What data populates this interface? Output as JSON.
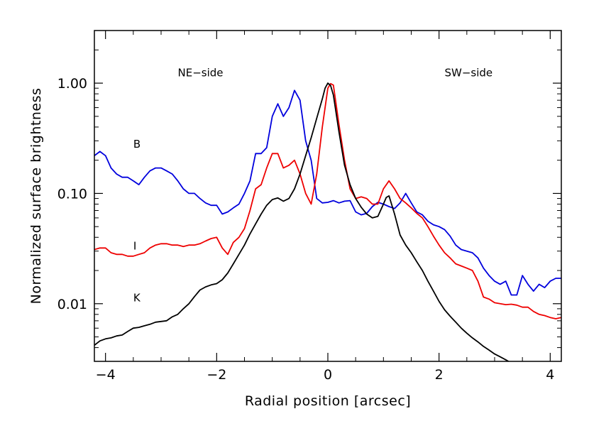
{
  "chart_data": {
    "type": "line",
    "title": "",
    "xlabel": "Radial position [arcsec]",
    "ylabel": "Normalized surface brightness",
    "xlim": [
      -4.2,
      4.2
    ],
    "ylim": [
      0.003,
      3.0
    ],
    "yscale": "log",
    "grid": false,
    "xticks": [
      -4,
      -2,
      0,
      2,
      4
    ],
    "xtick_labels": [
      "−4",
      "−2",
      "0",
      "2",
      "4"
    ],
    "yticks": [
      0.01,
      0.1,
      1.0
    ],
    "ytick_labels": [
      "0.01",
      "0.10",
      "1.00"
    ],
    "annotations": [
      {
        "text": "NE−side",
        "x": -2.7,
        "y": 1.15
      },
      {
        "text": "SW−side",
        "x": 2.1,
        "y": 1.15
      },
      {
        "text": "B",
        "x": -3.5,
        "y": 0.26
      },
      {
        "text": "I",
        "x": -3.5,
        "y": 0.031
      },
      {
        "text": "K",
        "x": -3.5,
        "y": 0.0105
      }
    ],
    "series": [
      {
        "name": "B",
        "color": "#0000dd",
        "x": [
          -4.2,
          -4.1,
          -4.0,
          -3.9,
          -3.8,
          -3.7,
          -3.6,
          -3.5,
          -3.4,
          -3.3,
          -3.2,
          -3.1,
          -3.0,
          -2.9,
          -2.8,
          -2.7,
          -2.6,
          -2.5,
          -2.4,
          -2.3,
          -2.2,
          -2.1,
          -2.0,
          -1.9,
          -1.8,
          -1.7,
          -1.6,
          -1.5,
          -1.4,
          -1.3,
          -1.2,
          -1.1,
          -1.0,
          -0.9,
          -0.8,
          -0.7,
          -0.6,
          -0.5,
          -0.4,
          -0.3,
          -0.2,
          -0.1,
          0.0,
          0.1,
          0.2,
          0.3,
          0.4,
          0.5,
          0.6,
          0.7,
          0.8,
          0.9,
          1.0,
          1.1,
          1.2,
          1.3,
          1.4,
          1.5,
          1.6,
          1.7,
          1.8,
          1.9,
          2.0,
          2.1,
          2.2,
          2.3,
          2.4,
          2.5,
          2.6,
          2.7,
          2.8,
          2.9,
          3.0,
          3.1,
          3.2,
          3.3,
          3.4,
          3.5,
          3.6,
          3.7,
          3.8,
          3.9,
          4.0,
          4.1,
          4.2
        ],
        "y": [
          0.22,
          0.24,
          0.22,
          0.17,
          0.15,
          0.14,
          0.14,
          0.13,
          0.12,
          0.14,
          0.16,
          0.17,
          0.17,
          0.16,
          0.15,
          0.13,
          0.11,
          0.1,
          0.1,
          0.09,
          0.082,
          0.078,
          0.078,
          0.065,
          0.068,
          0.074,
          0.08,
          0.1,
          0.13,
          0.23,
          0.23,
          0.26,
          0.5,
          0.65,
          0.5,
          0.6,
          0.86,
          0.7,
          0.3,
          0.2,
          0.09,
          0.082,
          0.083,
          0.086,
          0.082,
          0.085,
          0.086,
          0.068,
          0.064,
          0.066,
          0.076,
          0.083,
          0.08,
          0.076,
          0.073,
          0.082,
          0.1,
          0.082,
          0.068,
          0.064,
          0.056,
          0.052,
          0.05,
          0.047,
          0.041,
          0.034,
          0.031,
          0.03,
          0.029,
          0.026,
          0.021,
          0.018,
          0.016,
          0.015,
          0.016,
          0.012,
          0.012,
          0.018,
          0.015,
          0.013,
          0.015,
          0.014,
          0.016,
          0.017,
          0.017
        ]
      },
      {
        "name": "I",
        "color": "#ee0000",
        "x": [
          -4.2,
          -4.1,
          -4.0,
          -3.9,
          -3.8,
          -3.7,
          -3.6,
          -3.5,
          -3.4,
          -3.3,
          -3.2,
          -3.1,
          -3.0,
          -2.9,
          -2.8,
          -2.7,
          -2.6,
          -2.5,
          -2.4,
          -2.3,
          -2.2,
          -2.1,
          -2.0,
          -1.9,
          -1.8,
          -1.7,
          -1.6,
          -1.5,
          -1.4,
          -1.3,
          -1.2,
          -1.1,
          -1.0,
          -0.9,
          -0.8,
          -0.7,
          -0.6,
          -0.5,
          -0.4,
          -0.3,
          -0.2,
          -0.1,
          0.0,
          0.05,
          0.1,
          0.2,
          0.3,
          0.4,
          0.5,
          0.6,
          0.7,
          0.8,
          0.9,
          1.0,
          1.1,
          1.2,
          1.3,
          1.4,
          1.5,
          1.6,
          1.7,
          1.8,
          1.9,
          2.0,
          2.1,
          2.2,
          2.3,
          2.4,
          2.5,
          2.6,
          2.7,
          2.8,
          2.9,
          3.0,
          3.1,
          3.2,
          3.3,
          3.4,
          3.5,
          3.6,
          3.7,
          3.8,
          3.9,
          4.0,
          4.1,
          4.2
        ],
        "y": [
          0.031,
          0.032,
          0.032,
          0.029,
          0.028,
          0.028,
          0.027,
          0.027,
          0.028,
          0.029,
          0.032,
          0.034,
          0.035,
          0.035,
          0.034,
          0.034,
          0.033,
          0.034,
          0.034,
          0.035,
          0.037,
          0.039,
          0.04,
          0.032,
          0.028,
          0.036,
          0.04,
          0.048,
          0.07,
          0.11,
          0.12,
          0.17,
          0.23,
          0.23,
          0.17,
          0.18,
          0.2,
          0.15,
          0.1,
          0.08,
          0.15,
          0.4,
          0.9,
          0.99,
          0.96,
          0.42,
          0.2,
          0.11,
          0.09,
          0.093,
          0.09,
          0.08,
          0.08,
          0.11,
          0.13,
          0.11,
          0.09,
          0.082,
          0.074,
          0.066,
          0.06,
          0.05,
          0.041,
          0.034,
          0.029,
          0.026,
          0.023,
          0.022,
          0.021,
          0.02,
          0.016,
          0.0115,
          0.011,
          0.0102,
          0.01,
          0.0098,
          0.0099,
          0.0097,
          0.0093,
          0.0093,
          0.0085,
          0.008,
          0.0078,
          0.0075,
          0.0073,
          0.0075
        ]
      },
      {
        "name": "K",
        "color": "#000000",
        "x": [
          -4.2,
          -4.1,
          -4.0,
          -3.9,
          -3.8,
          -3.7,
          -3.6,
          -3.5,
          -3.4,
          -3.3,
          -3.2,
          -3.1,
          -3.0,
          -2.9,
          -2.8,
          -2.7,
          -2.6,
          -2.5,
          -2.4,
          -2.3,
          -2.2,
          -2.1,
          -2.0,
          -1.9,
          -1.8,
          -1.7,
          -1.6,
          -1.5,
          -1.4,
          -1.3,
          -1.2,
          -1.1,
          -1.0,
          -0.9,
          -0.8,
          -0.7,
          -0.6,
          -0.5,
          -0.4,
          -0.3,
          -0.2,
          -0.1,
          -0.05,
          0.0,
          0.05,
          0.1,
          0.2,
          0.3,
          0.4,
          0.5,
          0.6,
          0.7,
          0.8,
          0.9,
          1.0,
          1.05,
          1.1,
          1.2,
          1.3,
          1.4,
          1.5,
          1.6,
          1.7,
          1.8,
          1.9,
          2.0,
          2.1,
          2.2,
          2.3,
          2.4,
          2.5,
          2.6,
          2.7,
          2.8,
          2.9,
          3.0,
          3.1,
          3.2,
          3.3
        ],
        "y": [
          0.0042,
          0.0046,
          0.0048,
          0.0049,
          0.0051,
          0.0052,
          0.0056,
          0.006,
          0.0061,
          0.0063,
          0.0065,
          0.0068,
          0.0069,
          0.007,
          0.0076,
          0.008,
          0.009,
          0.01,
          0.0116,
          0.0133,
          0.0142,
          0.0148,
          0.0152,
          0.0165,
          0.019,
          0.023,
          0.028,
          0.034,
          0.043,
          0.053,
          0.065,
          0.078,
          0.088,
          0.091,
          0.085,
          0.09,
          0.11,
          0.15,
          0.22,
          0.32,
          0.48,
          0.72,
          0.9,
          1.0,
          0.95,
          0.78,
          0.36,
          0.18,
          0.12,
          0.09,
          0.075,
          0.065,
          0.06,
          0.062,
          0.08,
          0.092,
          0.095,
          0.065,
          0.042,
          0.034,
          0.029,
          0.024,
          0.02,
          0.016,
          0.013,
          0.0105,
          0.0088,
          0.0077,
          0.0068,
          0.006,
          0.0054,
          0.0049,
          0.0045,
          0.0041,
          0.0038,
          0.0035,
          0.0033,
          0.0031,
          0.0029
        ]
      }
    ]
  }
}
